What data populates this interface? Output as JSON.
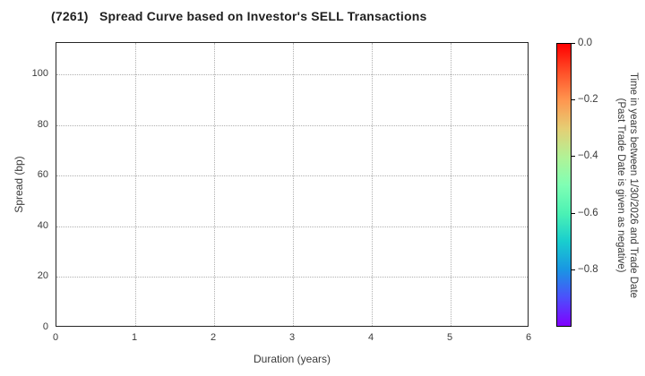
{
  "figure": {
    "title": "(7261)   Spread Curve based on Investor's SELL Transactions"
  },
  "axes": {
    "xlabel": "Duration (years)",
    "ylabel": "Spread (bp)",
    "x_tick_labels": [
      "0",
      "1",
      "2",
      "3",
      "4",
      "5",
      "6"
    ],
    "y_tick_labels": [
      "0",
      "20",
      "40",
      "60",
      "80",
      "100"
    ]
  },
  "colorbar": {
    "tick_labels": [
      "0.0",
      "−0.2",
      "−0.4",
      "−0.6",
      "−0.8"
    ],
    "label_line1": "Time in years between 1/30/2026 and Trade Date",
    "label_line2": "(Past Trade Date is given as negative)",
    "gradient_stops": [
      [
        0,
        "#ff0000"
      ],
      [
        10,
        "#ff4f28"
      ],
      [
        20,
        "#ff964f"
      ],
      [
        30,
        "#e5ce74"
      ],
      [
        40,
        "#b2f296"
      ],
      [
        50,
        "#80ffb4"
      ],
      [
        60,
        "#4cf2b4"
      ],
      [
        70,
        "#19cece"
      ],
      [
        80,
        "#1996e3"
      ],
      [
        90,
        "#4c4ffc"
      ],
      [
        100,
        "#8000ff"
      ]
    ]
  },
  "colors": {
    "text": "#262626",
    "tick_text": "#3a3a3a",
    "grid": "#b0b0b0",
    "spine": "#262626",
    "colorbar_outline": "#000000",
    "background": "#ffffff"
  },
  "chart_data": {
    "type": "scatter",
    "title": "(7261)   Spread Curve based on Investor's SELL Transactions",
    "xlabel": "Duration (years)",
    "ylabel": "Spread (bp)",
    "xlim": [
      0,
      6
    ],
    "ylim": [
      0,
      112.4
    ],
    "x_ticks": [
      0,
      1,
      2,
      3,
      4,
      5,
      6
    ],
    "y_ticks": [
      0,
      20,
      40,
      60,
      80,
      100
    ],
    "grid": true,
    "grid_linestyle": "dotted",
    "points": [],
    "colorbar": {
      "colormap": "rainbow",
      "orientation": "vertical",
      "range": [
        -1,
        0
      ],
      "tick_values": [
        0.0,
        -0.2,
        -0.4,
        -0.6,
        -0.8
      ],
      "label": "Time in years between 1/30/2026 and Trade Date (Past Trade Date is given as negative)"
    }
  }
}
